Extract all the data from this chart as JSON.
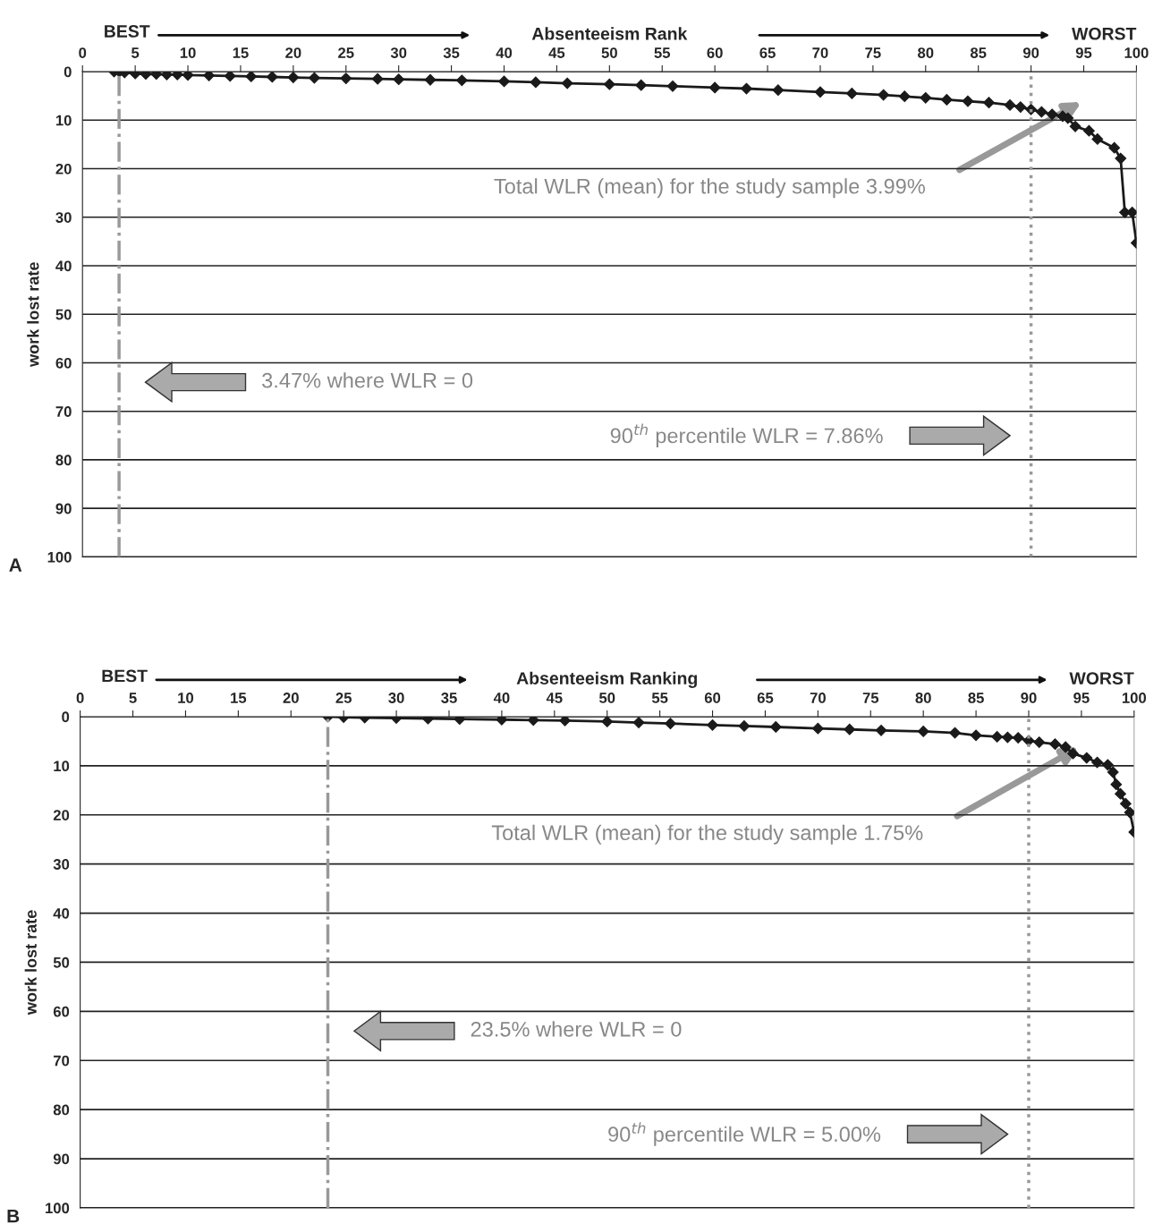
{
  "chart_data": [
    {
      "type": "line",
      "title": "Absenteeism Rank",
      "ylabel": "work lost rate",
      "annotations": [
        "BEST",
        "WORST",
        "A",
        "Total WLR (mean) for the study sample 3.99%",
        "3.47% where WLR = 0",
        "90$^{th}$ percentile WLR = 7.86%"
      ],
      "x": [
        3,
        3.5,
        4,
        5,
        6,
        7,
        8,
        9,
        10,
        12,
        14,
        16,
        18,
        20,
        22,
        25,
        28,
        30,
        33,
        36,
        40,
        43,
        46,
        50,
        53,
        56,
        60,
        63,
        66,
        70,
        73,
        76,
        78,
        80,
        82,
        84,
        86,
        88,
        89,
        90,
        91,
        92,
        93,
        93.5,
        94.2,
        95.5,
        96.3,
        97.9,
        98.5,
        98.9,
        99.6,
        100
      ],
      "series": [
        {
          "color": "#1a1a1a",
          "values": [
            0,
            0,
            0.2,
            0.4,
            0.5,
            0.5,
            0.6,
            0.6,
            0.7,
            0.8,
            0.9,
            1.0,
            1.1,
            1.2,
            1.3,
            1.4,
            1.5,
            1.6,
            1.7,
            1.8,
            2.0,
            2.2,
            2.4,
            2.6,
            2.8,
            3.0,
            3.3,
            3.5,
            3.8,
            4.2,
            4.5,
            4.8,
            5.1,
            5.4,
            5.8,
            6.1,
            6.4,
            6.9,
            7.3,
            7.8,
            8.3,
            8.8,
            9.2,
            9.6,
            11.3,
            12.2,
            13.9,
            15.7,
            17.9,
            29,
            29,
            35.3
          ]
        }
      ],
      "xlim": [
        0,
        100
      ],
      "xticks": [
        0,
        5,
        10,
        15,
        20,
        25,
        30,
        35,
        40,
        45,
        50,
        55,
        60,
        65,
        70,
        75,
        80,
        85,
        90,
        95,
        100
      ],
      "ylim": [
        100,
        0
      ],
      "yticks": [
        0,
        10,
        20,
        30,
        40,
        50,
        60,
        70,
        80,
        90,
        100
      ],
      "ref_lines": [
        {
          "axis": "x",
          "value": 3.47,
          "color": "#999999",
          "line_style": "dashdot"
        },
        {
          "axis": "x",
          "value": 90,
          "color": "#999999",
          "line_style": "dotted"
        }
      ],
      "grid": "y",
      "marker": "diamond",
      "line_style": "solid"
    },
    {
      "type": "line",
      "title": "Absenteeism Ranking",
      "ylabel": "work lost rate",
      "annotations": [
        "BEST",
        "WORST",
        "B",
        "Total WLR (mean) for the study sample 1.75%",
        "23.5% where WLR = 0",
        "90$^{th}$ percentile WLR = 5.00%"
      ],
      "x": [
        23.5,
        25,
        27,
        30,
        33,
        36,
        40,
        43,
        46,
        50,
        53,
        56,
        60,
        63,
        66,
        70,
        73,
        76,
        80,
        83,
        85,
        87,
        88,
        89,
        90,
        91,
        92.5,
        93.5,
        94.2,
        95.5,
        96.5,
        97.5,
        98,
        98.3,
        98.7,
        99.2,
        99.6,
        100
      ],
      "series": [
        {
          "color": "#1a1a1a",
          "values": [
            0,
            0.1,
            0.2,
            0.3,
            0.4,
            0.5,
            0.6,
            0.7,
            0.8,
            1.0,
            1.2,
            1.4,
            1.7,
            1.9,
            2.1,
            2.4,
            2.6,
            2.8,
            3.0,
            3.3,
            3.8,
            4.1,
            4.2,
            4.3,
            4.9,
            5.2,
            5.6,
            6.2,
            7.5,
            8.4,
            9.3,
            9.8,
            11.3,
            13.8,
            15.7,
            17.7,
            19.5,
            23.5
          ]
        }
      ],
      "xlim": [
        0,
        100
      ],
      "xticks": [
        0,
        5,
        10,
        15,
        20,
        25,
        30,
        35,
        40,
        45,
        50,
        55,
        60,
        65,
        70,
        75,
        80,
        85,
        90,
        95,
        100
      ],
      "ylim": [
        100,
        0
      ],
      "yticks": [
        0,
        10,
        20,
        30,
        40,
        50,
        60,
        70,
        80,
        90,
        100
      ],
      "ref_lines": [
        {
          "axis": "x",
          "value": 23.5,
          "color": "#999999",
          "line_style": "dashdot"
        },
        {
          "axis": "x",
          "value": 90,
          "color": "#999999",
          "line_style": "dotted"
        }
      ],
      "grid": "y",
      "marker": "diamond",
      "line_style": "solid"
    }
  ]
}
